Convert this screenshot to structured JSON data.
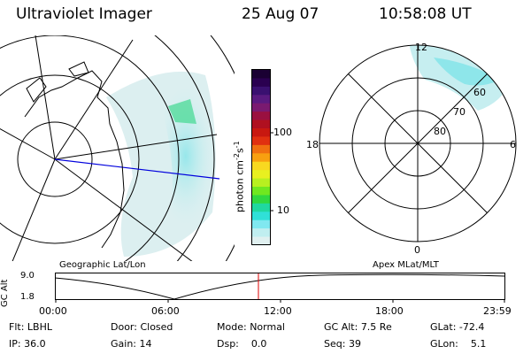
{
  "header": {
    "instrument": "Ultraviolet Imager",
    "date": "25 Aug 07",
    "time": "10:58:08 UT"
  },
  "colorbar": {
    "unit_label": "photon cm",
    "unit_sup1": "-2",
    "unit_mid": "s",
    "unit_sup2": "-1",
    "ticks": [
      "100",
      "10"
    ],
    "colors": [
      "#1a0033",
      "#2a0050",
      "#3a1070",
      "#5a1a80",
      "#7a1a70",
      "#9a1040",
      "#b01020",
      "#c81810",
      "#e03010",
      "#f07010",
      "#f8a010",
      "#f8d820",
      "#e8f020",
      "#b8f020",
      "#70e820",
      "#30d840",
      "#20d8a0",
      "#30e0d8",
      "#80e8f0",
      "#c0eef0",
      "#e0f0f0"
    ]
  },
  "left_map": {
    "label": "Geographic Lat/Lon"
  },
  "right_map": {
    "label": "Apex MLat/MLT",
    "hour_labels": {
      "top": "12",
      "left": "18",
      "right": "6",
      "bottom": "0"
    },
    "lat_labels": [
      "60",
      "70",
      "80"
    ]
  },
  "altitude_plot": {
    "ylabel": "GC Alt",
    "yticks": [
      "9.0",
      "1.8"
    ],
    "xticks": [
      "00:00",
      "06:00",
      "12:00",
      "18:00",
      "23:59"
    ]
  },
  "status": {
    "row1": [
      {
        "key": "Flt:",
        "value": "LBHL"
      },
      {
        "key": "Door:",
        "value": "Closed"
      },
      {
        "key": "Mode:",
        "value": "Normal"
      },
      {
        "key": "GC Alt:",
        "value": "7.5 Re"
      },
      {
        "key": "GLat:",
        "value": "-72.4"
      }
    ],
    "row2": [
      {
        "key": "IP:",
        "value": "36.0"
      },
      {
        "key": "Gain:",
        "value": "14"
      },
      {
        "key": "Dsp:",
        "value": "0.0"
      },
      {
        "key": "Seq:",
        "value": "39"
      },
      {
        "key": "GLon:",
        "value": "5.1"
      }
    ]
  }
}
